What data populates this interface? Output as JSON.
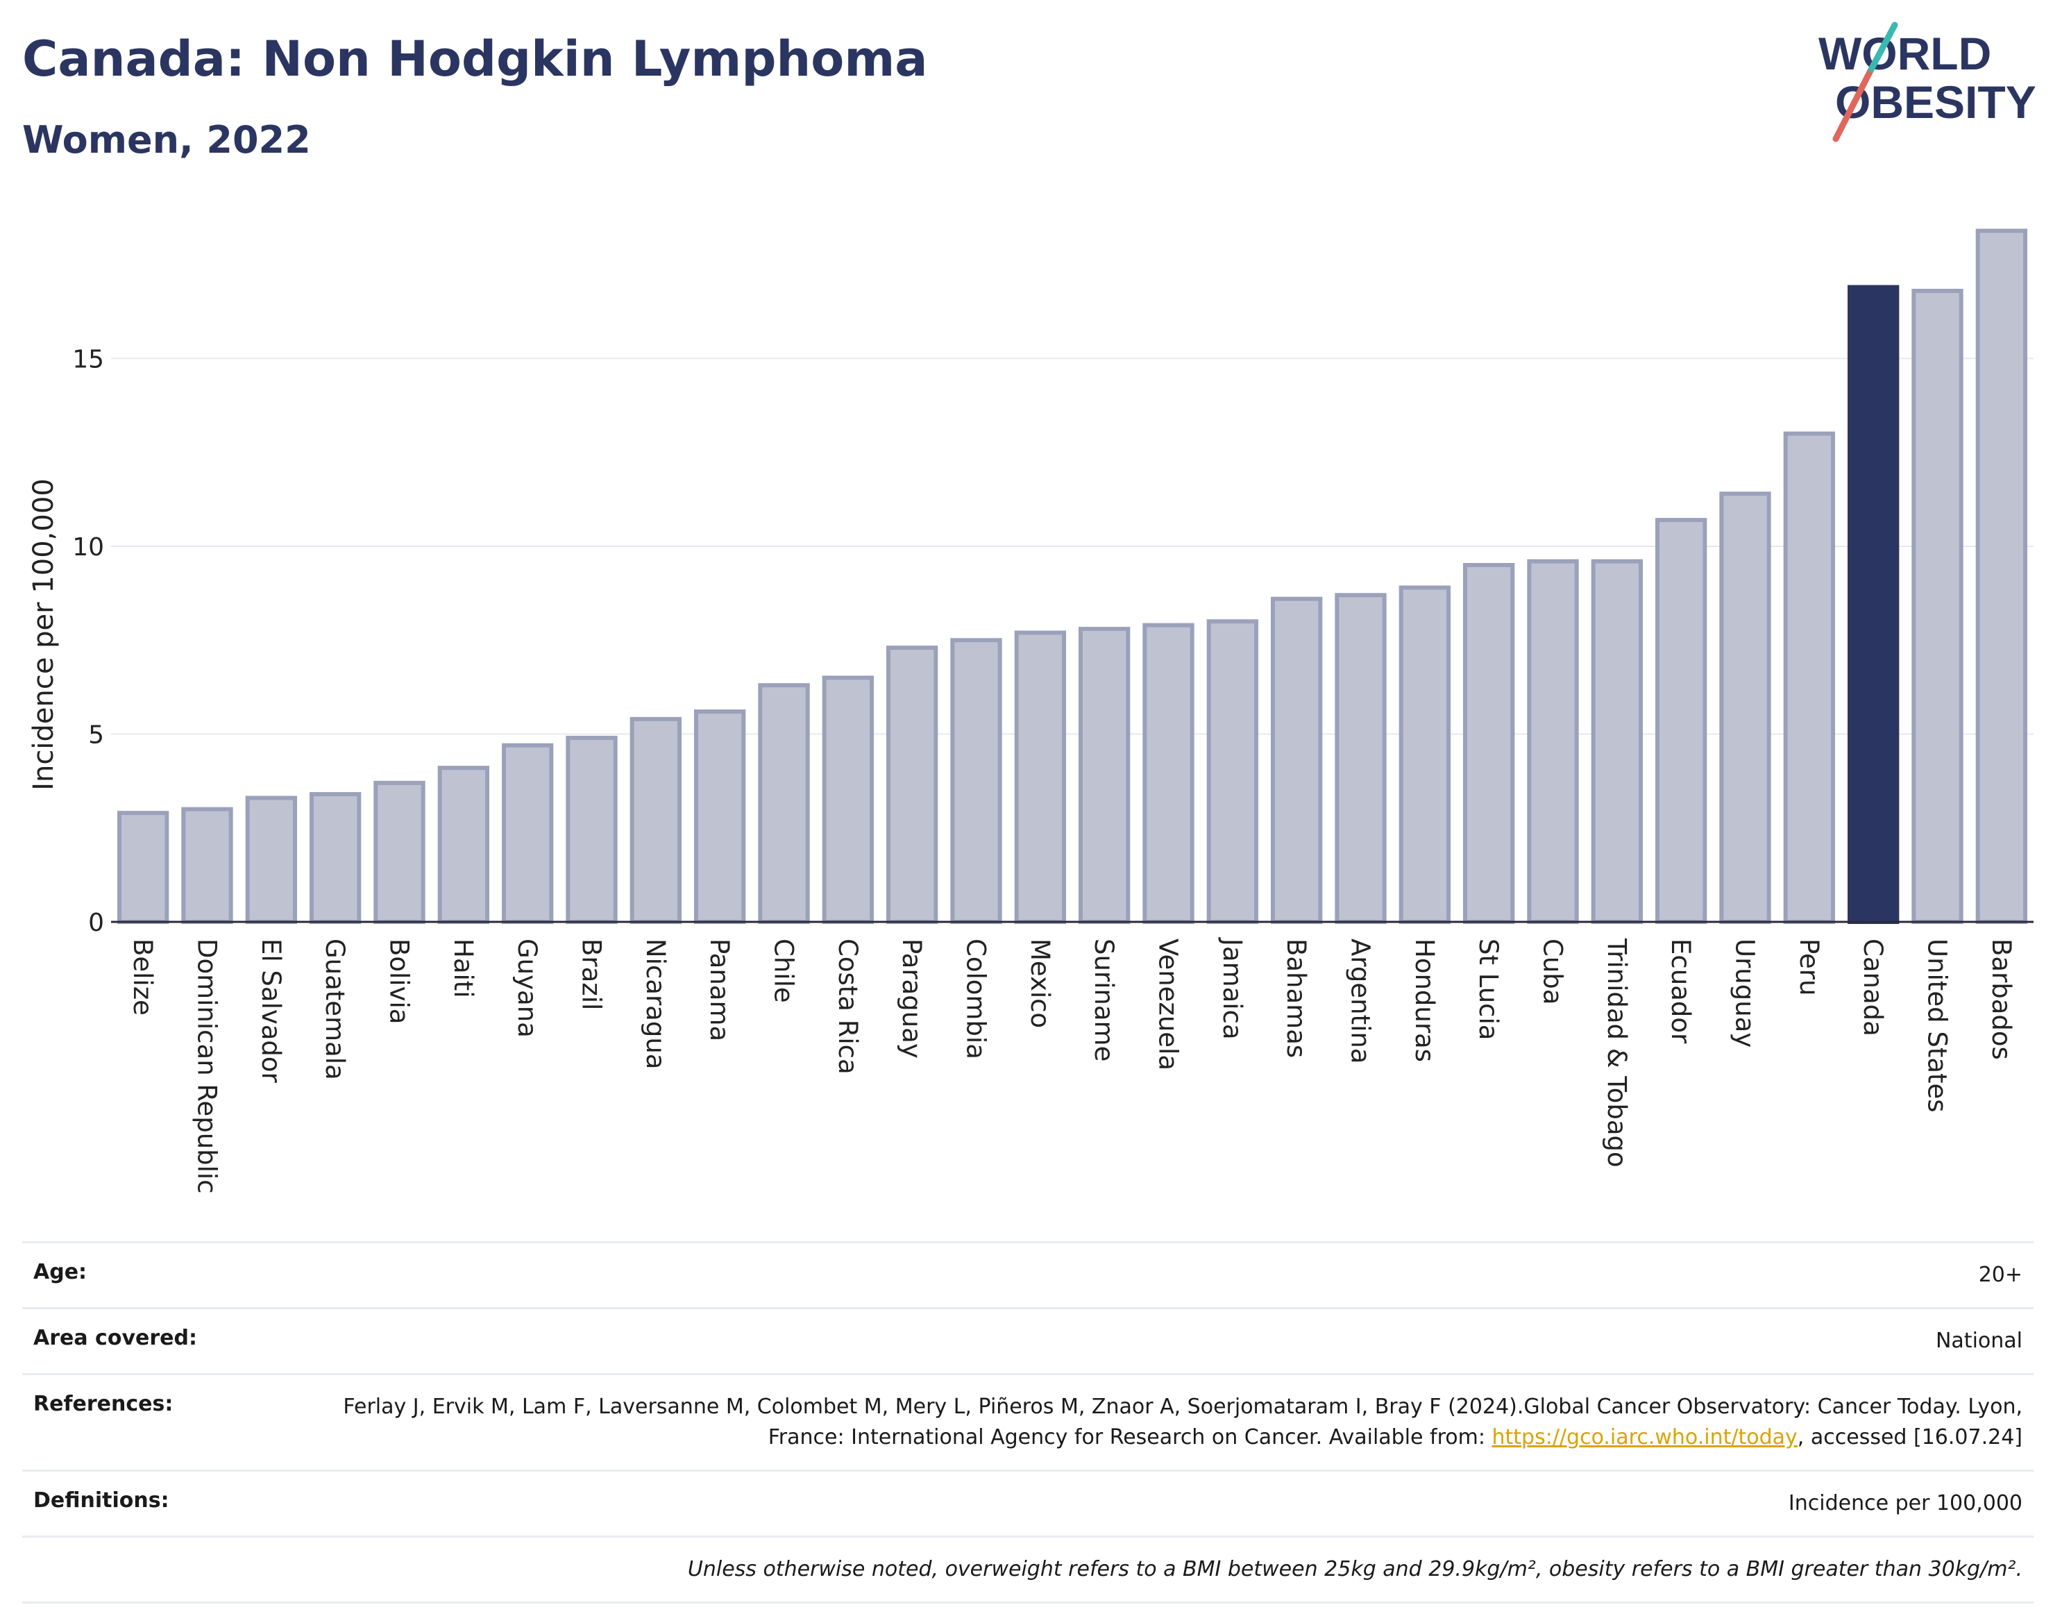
{
  "header": {
    "title": "Canada: Non Hodgkin Lymphoma",
    "subtitle": "Women, 2022"
  },
  "logo": {
    "line1": "WORLD",
    "line2": "OBESITY"
  },
  "colors": {
    "bar": "#bfc3d1",
    "bar_border": "#9ba1ba",
    "highlight": "#2b3561",
    "text": "#2b3561"
  },
  "chart_data": {
    "type": "bar",
    "ylabel": "Incidence per 100,000",
    "ylim": [
      0,
      19
    ],
    "yticks": [
      0,
      5,
      10,
      15
    ],
    "grid": true,
    "highlight": "Canada",
    "categories": [
      "Belize",
      "Dominican Republic",
      "El Salvador",
      "Guatemala",
      "Bolivia",
      "Haiti",
      "Guyana",
      "Brazil",
      "Nicaragua",
      "Panama",
      "Chile",
      "Costa Rica",
      "Paraguay",
      "Colombia",
      "Mexico",
      "Suriname",
      "Venezuela",
      "Jamaica",
      "Bahamas",
      "Argentina",
      "Honduras",
      "St Lucia",
      "Cuba",
      "Trinidad & Tobago",
      "Ecuador",
      "Uruguay",
      "Peru",
      "Canada",
      "United States",
      "Barbados"
    ],
    "values": [
      2.9,
      3.0,
      3.3,
      3.4,
      3.7,
      4.1,
      4.7,
      4.9,
      5.4,
      5.6,
      6.3,
      6.5,
      7.3,
      7.5,
      7.7,
      7.8,
      7.9,
      8.0,
      8.6,
      8.7,
      8.9,
      9.5,
      9.6,
      9.6,
      10.7,
      11.4,
      13.0,
      16.9,
      16.8,
      18.4
    ]
  },
  "info": {
    "age_label": "Age:",
    "age_value": "20+",
    "area_label": "Area covered:",
    "area_value": "National",
    "refs_label": "References:",
    "refs_text": "Ferlay J, Ervik M, Lam F, Laversanne M, Colombet M, Mery L, Piñeros M, Znaor A, Soerjomataram I, Bray F (2024).Global Cancer Observatory: Cancer Today. Lyon, France: International Agency for Research on Cancer. Available from: ",
    "refs_link": "https://gco.iarc.who.int/today",
    "refs_tail": ", accessed [16.07.24]",
    "defs_label": "Definitions:",
    "defs_value": "Incidence per 100,000",
    "note": "Unless otherwise noted, overweight refers to a BMI between 25kg and 29.9kg/m², obesity refers to a BMI greater than 30kg/m²."
  }
}
